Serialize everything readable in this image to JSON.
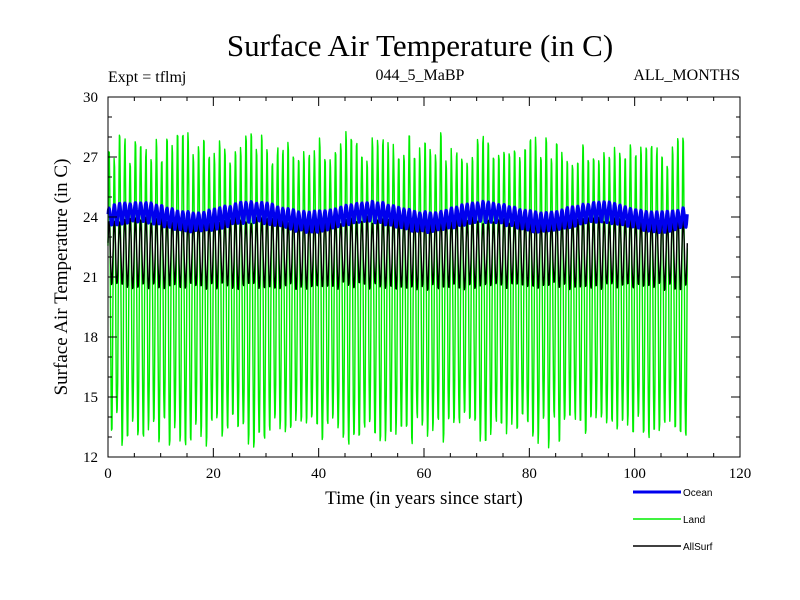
{
  "chart_data": {
    "type": "line",
    "title": "Surface Air Temperature (in C)",
    "subtitle_left": "Expt = tflmj",
    "subtitle_center": "044_5_MaBP",
    "subtitle_right": "ALL_MONTHS",
    "xlabel": "Time (in years since start)",
    "ylabel": "Surface Air Temperature (in C)",
    "xlim": [
      0,
      120
    ],
    "ylim": [
      12,
      30
    ],
    "xticks": [
      0,
      20,
      40,
      60,
      80,
      100,
      120
    ],
    "yticks": [
      12,
      15,
      18,
      21,
      24,
      27,
      30
    ],
    "grid": false,
    "legend_position": "bottom-right",
    "series": [
      {
        "name": "Land",
        "color": "#00ee00",
        "x_start": 0,
        "x_end": 110,
        "mean": 20.4,
        "amplitude": 7.2,
        "cycle_years": 1
      },
      {
        "name": "AllSurf",
        "color": "#000000",
        "x_start": 0,
        "x_end": 110,
        "mean": 22.2,
        "amplitude": 1.7,
        "cycle_years": 1
      },
      {
        "name": "Ocean",
        "color": "#0000ee",
        "x_start": 0,
        "x_end": 110,
        "mean": 24.0,
        "amplitude": 0.5,
        "cycle_years": 1
      }
    ],
    "legend_order": [
      "Ocean",
      "Land",
      "AllSurf"
    ]
  }
}
